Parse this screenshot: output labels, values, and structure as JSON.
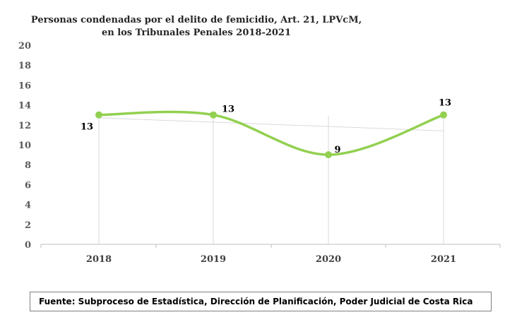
{
  "colors": {
    "series": "#92D050",
    "trendline": "#D9D9D9",
    "axis_text": "#595959",
    "grid": "#D9D9D9"
  },
  "chart_data": {
    "type": "line",
    "title": "Personas condenadas por el delito de femicidio, Art. 21, LPVcM,\nen los Tribunales Penales 2018-2021",
    "categories": [
      "2018",
      "2019",
      "2020",
      "2021"
    ],
    "series": [
      {
        "values": [
          13,
          13,
          9,
          13
        ],
        "smooth": true,
        "markers": true
      }
    ],
    "data_labels": [
      "13",
      "13",
      "9",
      "13"
    ],
    "trendline": {
      "type": "linear",
      "values": [
        12.7,
        12.2,
        11.8,
        11.4
      ]
    },
    "yticks": [
      "0",
      "2",
      "4",
      "6",
      "8",
      "10",
      "12",
      "14",
      "16",
      "18",
      "20"
    ],
    "ylim": [
      0,
      20
    ],
    "xlabel": "",
    "ylabel": "",
    "grid": "vertical",
    "legend": "none"
  },
  "footer": {
    "source": "Fuente: Subproceso de Estadística, Dirección de Planificación, Poder Judicial de Costa Rica"
  }
}
